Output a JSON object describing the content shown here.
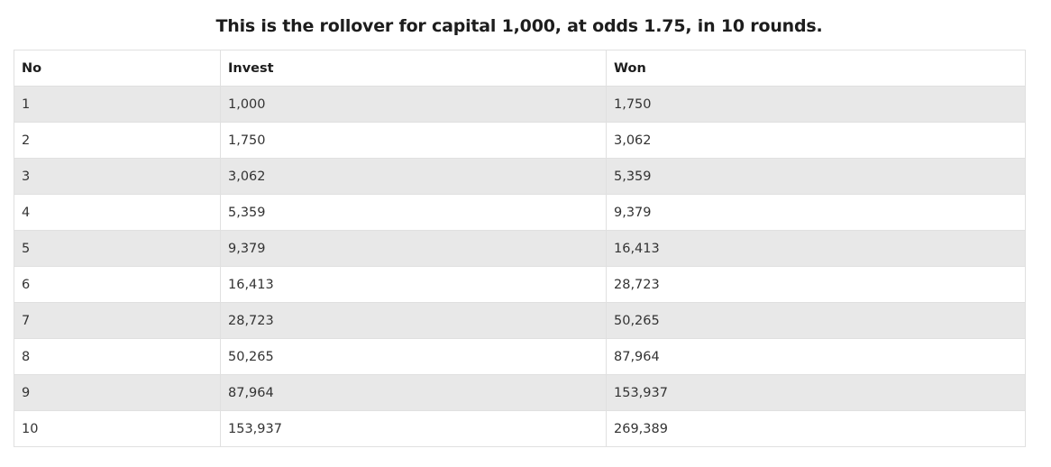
{
  "title": "This is the rollover for capital 1,000, at odds 1.75, in 10 rounds.",
  "table": {
    "headers": [
      "No",
      "Invest",
      "Won"
    ],
    "rows": [
      [
        "1",
        "1,000",
        "1,750"
      ],
      [
        "2",
        "1,750",
        "3,062"
      ],
      [
        "3",
        "3,062",
        "5,359"
      ],
      [
        "4",
        "5,359",
        "9,379"
      ],
      [
        "5",
        "9,379",
        "16,413"
      ],
      [
        "6",
        "16,413",
        "28,723"
      ],
      [
        "7",
        "28,723",
        "50,265"
      ],
      [
        "8",
        "50,265",
        "87,964"
      ],
      [
        "9",
        "87,964",
        "153,937"
      ],
      [
        "10",
        "153,937",
        "269,389"
      ]
    ]
  },
  "colors": {
    "stripe": "#e8e8e8",
    "border": "#e0e0e0",
    "text": "#333333"
  }
}
